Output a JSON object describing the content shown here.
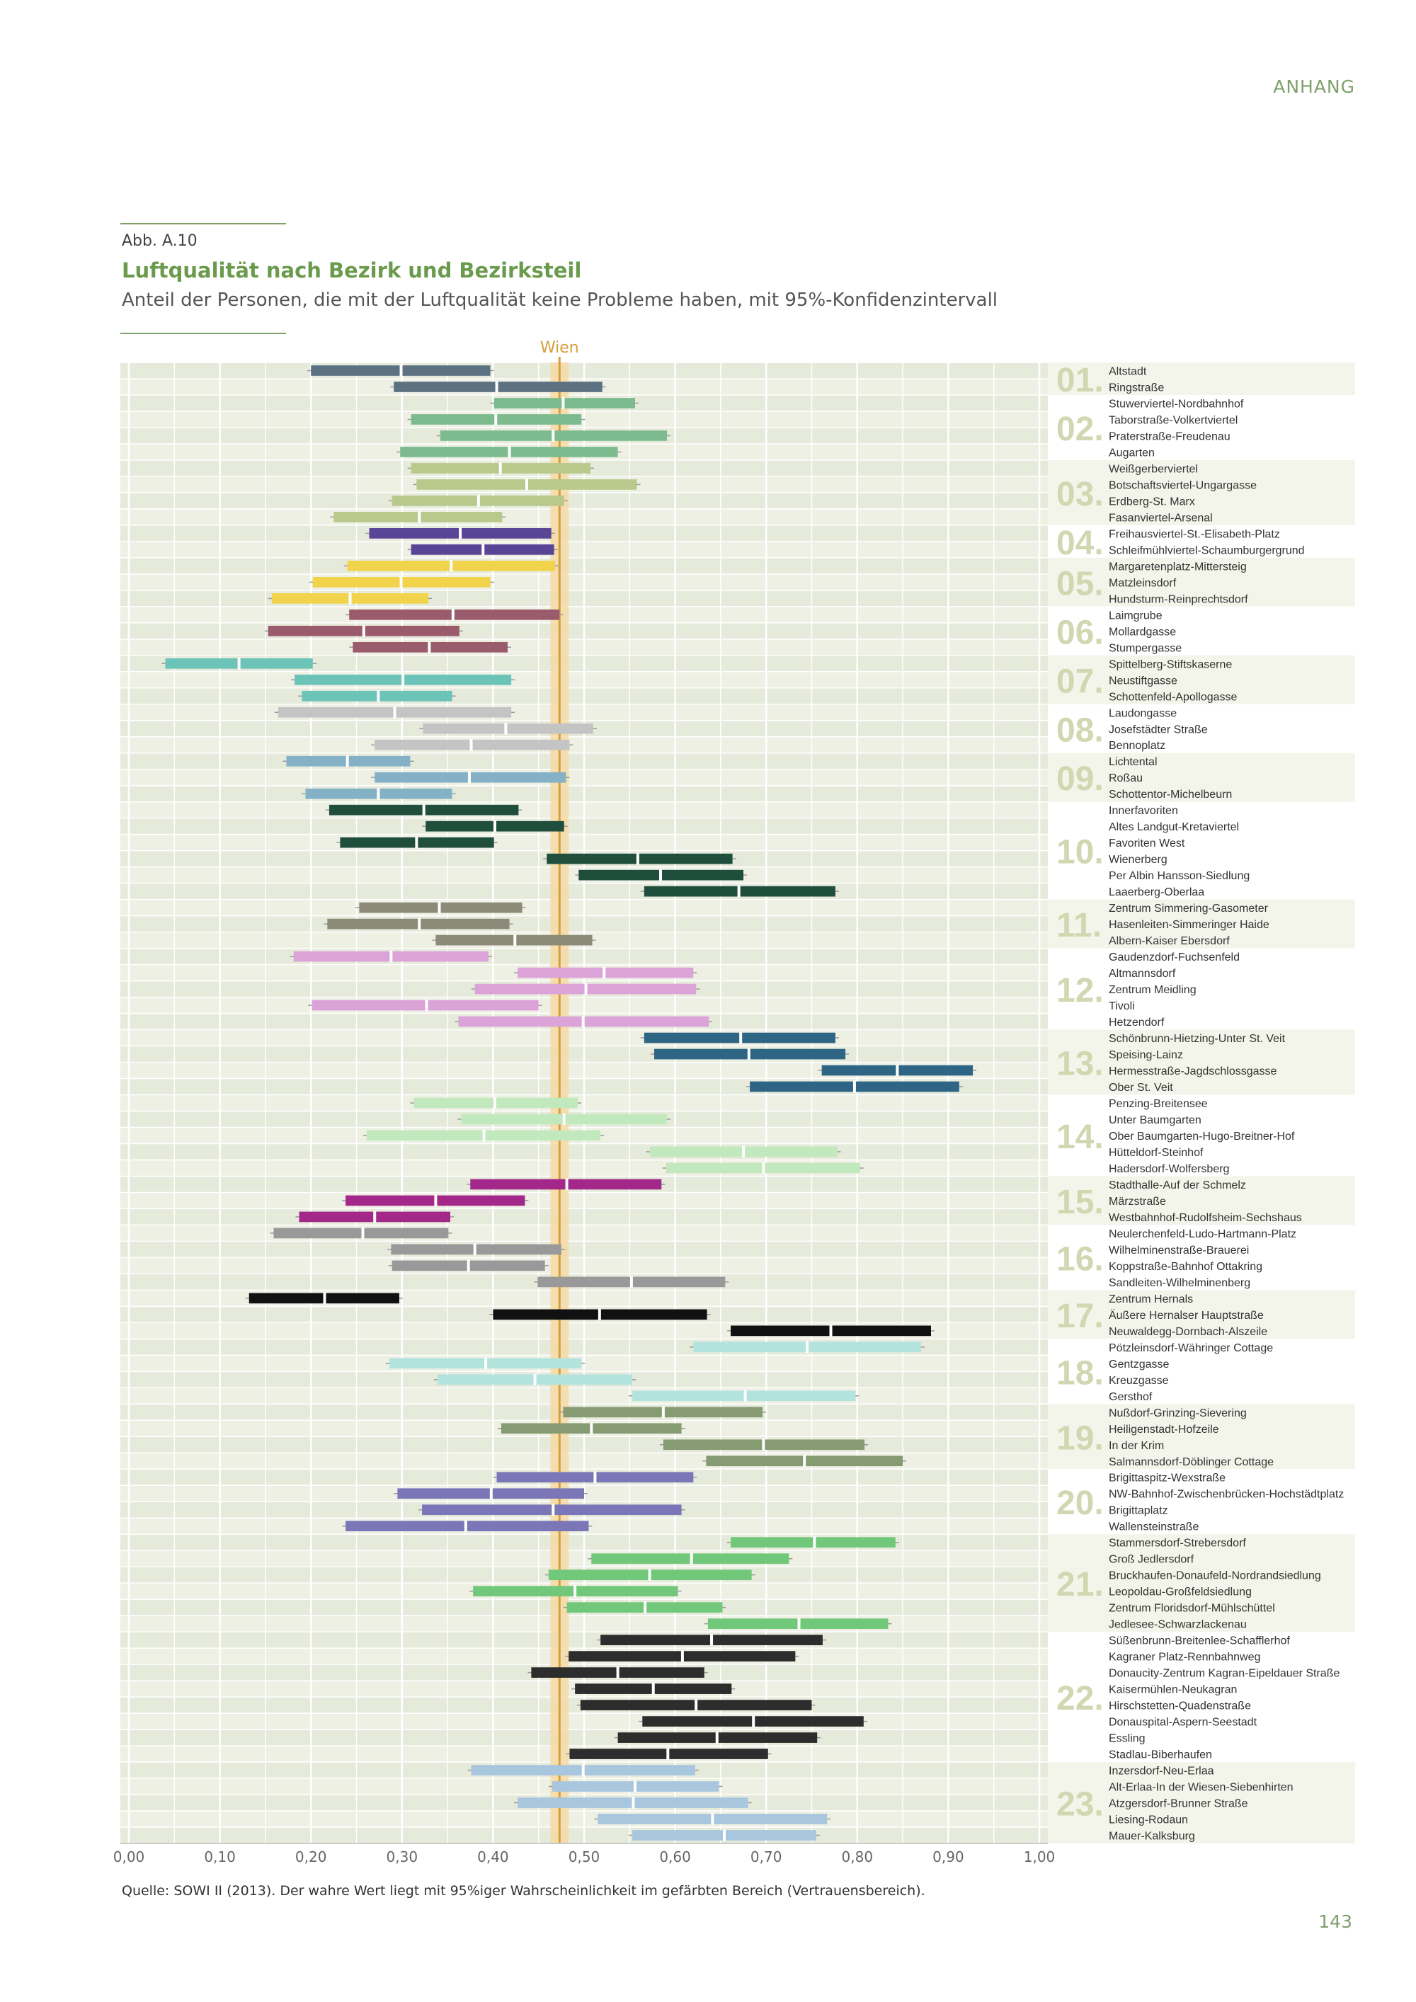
{
  "page": {
    "header_label": "ANHANG",
    "figure_number": "Abb. A.10",
    "title": "Luftqualität nach Bezirk und Bezirksteil",
    "subtitle": "Anteil der Personen, die mit der Luftqualität keine Probleme haben, mit 95%-Konfidenzintervall",
    "source": "Quelle: SOWI II (2013). Der wahre Wert liegt mit 95%iger Wahrscheinlichkeit im gefärbten Bereich (Vertrauensbereich).",
    "page_number": "143"
  },
  "chart_data": {
    "type": "bar",
    "orientation": "horizontal",
    "encoding": "confidence-interval bars with point-estimate marker",
    "xlim": [
      0,
      1
    ],
    "xticks": [
      "0,00",
      "0,10",
      "0,20",
      "0,30",
      "0,40",
      "0,50",
      "0,60",
      "0,70",
      "0,80",
      "0,90",
      "1,00"
    ],
    "reference_line": {
      "label": "Wien",
      "value": 0.473,
      "band": [
        0.463,
        0.483
      ],
      "color": "#d4a03a"
    },
    "grid": true,
    "districts": [
      {
        "number": "01.",
        "color": "#5c7283",
        "items": [
          {
            "name": "Altstadt",
            "lower": 0.2,
            "estimate": 0.299,
            "upper": 0.397
          },
          {
            "name": "Ringstraße",
            "lower": 0.291,
            "estimate": 0.404,
            "upper": 0.52
          }
        ]
      },
      {
        "number": "02.",
        "color": "#7dbb8f",
        "items": [
          {
            "name": "Stuwerviertel-Nordbahnhof",
            "lower": 0.401,
            "estimate": 0.477,
            "upper": 0.556
          },
          {
            "name": "Taborstraße-Volkertviertel",
            "lower": 0.31,
            "estimate": 0.403,
            "upper": 0.497
          },
          {
            "name": "Praterstraße-Freudenau",
            "lower": 0.342,
            "estimate": 0.466,
            "upper": 0.591
          },
          {
            "name": "Augarten",
            "lower": 0.298,
            "estimate": 0.418,
            "upper": 0.537
          }
        ]
      },
      {
        "number": "03.",
        "color": "#b9c98c",
        "items": [
          {
            "name": "Weißgerberviertel",
            "lower": 0.31,
            "estimate": 0.408,
            "upper": 0.507
          },
          {
            "name": "Botschaftsviertel-Ungargasse",
            "lower": 0.316,
            "estimate": 0.437,
            "upper": 0.558
          },
          {
            "name": "Erdberg-St. Marx",
            "lower": 0.289,
            "estimate": 0.384,
            "upper": 0.478
          },
          {
            "name": "Fasanviertel-Arsenal",
            "lower": 0.225,
            "estimate": 0.319,
            "upper": 0.41
          }
        ]
      },
      {
        "number": "04.",
        "color": "#5a4496",
        "items": [
          {
            "name": "Freihausviertel-St.-Elisabeth-Platz",
            "lower": 0.264,
            "estimate": 0.364,
            "upper": 0.464
          },
          {
            "name": "Schleifmühlviertel-Schaumburgergrund",
            "lower": 0.31,
            "estimate": 0.389,
            "upper": 0.467
          }
        ]
      },
      {
        "number": "05.",
        "color": "#f2d44c",
        "items": [
          {
            "name": "Margaretenplatz-Mittersteig",
            "lower": 0.24,
            "estimate": 0.354,
            "upper": 0.468
          },
          {
            "name": "Matzleinsdorf",
            "lower": 0.202,
            "estimate": 0.299,
            "upper": 0.397
          },
          {
            "name": "Hundsturm-Reinprechtsdorf",
            "lower": 0.157,
            "estimate": 0.243,
            "upper": 0.329
          }
        ]
      },
      {
        "number": "06.",
        "color": "#9a5b6c",
        "items": [
          {
            "name": "Laimgrube",
            "lower": 0.242,
            "estimate": 0.356,
            "upper": 0.473
          },
          {
            "name": "Mollardgasse",
            "lower": 0.153,
            "estimate": 0.258,
            "upper": 0.363
          },
          {
            "name": "Stumpergasse",
            "lower": 0.246,
            "estimate": 0.33,
            "upper": 0.416
          }
        ]
      },
      {
        "number": "07.",
        "color": "#6cc3b8",
        "items": [
          {
            "name": "Spittelberg-Stiftskaserne",
            "lower": 0.04,
            "estimate": 0.121,
            "upper": 0.202
          },
          {
            "name": "Neustiftgasse",
            "lower": 0.182,
            "estimate": 0.301,
            "upper": 0.42
          },
          {
            "name": "Schottenfeld-Apollogasse",
            "lower": 0.19,
            "estimate": 0.274,
            "upper": 0.355
          }
        ]
      },
      {
        "number": "08.",
        "color": "#c4c4c4",
        "items": [
          {
            "name": "Laudongasse",
            "lower": 0.164,
            "estimate": 0.292,
            "upper": 0.42
          },
          {
            "name": "Josefstädter Straße",
            "lower": 0.323,
            "estimate": 0.414,
            "upper": 0.51
          },
          {
            "name": "Bennoplatz",
            "lower": 0.27,
            "estimate": 0.376,
            "upper": 0.484
          }
        ]
      },
      {
        "number": "09.",
        "color": "#85b1c7",
        "items": [
          {
            "name": "Lichtental",
            "lower": 0.173,
            "estimate": 0.24,
            "upper": 0.309
          },
          {
            "name": "Roßau",
            "lower": 0.27,
            "estimate": 0.374,
            "upper": 0.48
          },
          {
            "name": "Schottentor-Michelbeurn",
            "lower": 0.194,
            "estimate": 0.274,
            "upper": 0.355
          }
        ]
      },
      {
        "number": "10.",
        "color": "#1f4e3d",
        "items": [
          {
            "name": "Innerfavoriten",
            "lower": 0.22,
            "estimate": 0.324,
            "upper": 0.428
          },
          {
            "name": "Altes Landgut-Kretaviertel",
            "lower": 0.326,
            "estimate": 0.402,
            "upper": 0.478
          },
          {
            "name": "Favoriten West",
            "lower": 0.232,
            "estimate": 0.316,
            "upper": 0.401
          },
          {
            "name": "Wienerberg",
            "lower": 0.459,
            "estimate": 0.559,
            "upper": 0.663
          },
          {
            "name": "Per Albin Hansson-Siedlung",
            "lower": 0.494,
            "estimate": 0.584,
            "upper": 0.675
          },
          {
            "name": "Laaerberg-Oberlaa",
            "lower": 0.566,
            "estimate": 0.67,
            "upper": 0.776
          }
        ]
      },
      {
        "number": "11.",
        "color": "#8c8a78",
        "items": [
          {
            "name": "Zentrum Simmering-Gasometer",
            "lower": 0.253,
            "estimate": 0.341,
            "upper": 0.432
          },
          {
            "name": "Hasenleiten-Simmeringer Haide",
            "lower": 0.218,
            "estimate": 0.319,
            "upper": 0.418
          },
          {
            "name": "Albern-Kaiser Ebersdorf",
            "lower": 0.337,
            "estimate": 0.424,
            "upper": 0.509
          }
        ]
      },
      {
        "number": "12.",
        "color": "#dba3d8",
        "items": [
          {
            "name": "Gaudenzdorf-Fuchsenfeld",
            "lower": 0.181,
            "estimate": 0.288,
            "upper": 0.395
          },
          {
            "name": "Altmannsdorf",
            "lower": 0.427,
            "estimate": 0.522,
            "upper": 0.62
          },
          {
            "name": "Zentrum Meidling",
            "lower": 0.38,
            "estimate": 0.502,
            "upper": 0.623
          },
          {
            "name": "Tivoli",
            "lower": 0.201,
            "estimate": 0.327,
            "upper": 0.45
          },
          {
            "name": "Hetzendorf",
            "lower": 0.362,
            "estimate": 0.499,
            "upper": 0.637
          }
        ]
      },
      {
        "number": "13.",
        "color": "#2e6585",
        "items": [
          {
            "name": "Schönbrunn-Hietzing-Unter St. Veit",
            "lower": 0.566,
            "estimate": 0.672,
            "upper": 0.776
          },
          {
            "name": "Speising-Lainz",
            "lower": 0.577,
            "estimate": 0.681,
            "upper": 0.787
          },
          {
            "name": "Hermesstraße-Jagdschlossgasse",
            "lower": 0.761,
            "estimate": 0.844,
            "upper": 0.927
          },
          {
            "name": "Ober St. Veit",
            "lower": 0.682,
            "estimate": 0.797,
            "upper": 0.912
          }
        ]
      },
      {
        "number": "14.",
        "color": "#c2e8bd",
        "items": [
          {
            "name": "Penzing-Breitensee",
            "lower": 0.313,
            "estimate": 0.402,
            "upper": 0.493
          },
          {
            "name": "Unter Baumgarten",
            "lower": 0.365,
            "estimate": 0.478,
            "upper": 0.591
          },
          {
            "name": "Ober Baumgarten-Hugo-Breitner-Hof",
            "lower": 0.261,
            "estimate": 0.39,
            "upper": 0.518
          },
          {
            "name": "Hütteldorf-Steinhof",
            "lower": 0.572,
            "estimate": 0.675,
            "upper": 0.778
          },
          {
            "name": "Hadersdorf-Wolfersberg",
            "lower": 0.59,
            "estimate": 0.697,
            "upper": 0.803
          }
        ]
      },
      {
        "number": "15.",
        "color": "#a3288a",
        "items": [
          {
            "name": "Stadthalle-Auf der Schmelz",
            "lower": 0.375,
            "estimate": 0.481,
            "upper": 0.585
          },
          {
            "name": "Märzstraße",
            "lower": 0.238,
            "estimate": 0.337,
            "upper": 0.435
          },
          {
            "name": "Westbahnhof-Rudolfsheim-Sechshaus",
            "lower": 0.187,
            "estimate": 0.27,
            "upper": 0.353
          }
        ]
      },
      {
        "number": "16.",
        "color": "#999999",
        "items": [
          {
            "name": "Neulerchenfeld-Ludo-Hartmann-Platz",
            "lower": 0.159,
            "estimate": 0.257,
            "upper": 0.351
          },
          {
            "name": "Wilhelminenstraße-Brauerei",
            "lower": 0.288,
            "estimate": 0.38,
            "upper": 0.475
          },
          {
            "name": "Koppstraße-Bahnhof Ottakring",
            "lower": 0.289,
            "estimate": 0.373,
            "upper": 0.457
          },
          {
            "name": "Sandleiten-Wilhelminenberg",
            "lower": 0.449,
            "estimate": 0.552,
            "upper": 0.655
          }
        ]
      },
      {
        "number": "17.",
        "color": "#111111",
        "items": [
          {
            "name": "Zentrum Hernals",
            "lower": 0.132,
            "estimate": 0.215,
            "upper": 0.297
          },
          {
            "name": "Äußere Hernalser Hauptstraße",
            "lower": 0.4,
            "estimate": 0.517,
            "upper": 0.635
          },
          {
            "name": "Neuwaldegg-Dornbach-Alszeile",
            "lower": 0.661,
            "estimate": 0.771,
            "upper": 0.881
          }
        ]
      },
      {
        "number": "18.",
        "color": "#b3e3dd",
        "items": [
          {
            "name": "Pötzleinsdorf-Währinger Cottage",
            "lower": 0.62,
            "estimate": 0.745,
            "upper": 0.87
          },
          {
            "name": "Gentzgasse",
            "lower": 0.286,
            "estimate": 0.392,
            "upper": 0.497
          },
          {
            "name": "Kreuzgasse",
            "lower": 0.339,
            "estimate": 0.446,
            "upper": 0.553
          },
          {
            "name": "Gersthof",
            "lower": 0.553,
            "estimate": 0.677,
            "upper": 0.798
          }
        ]
      },
      {
        "number": "19.",
        "color": "#869b72",
        "items": [
          {
            "name": "Nußdorf-Grinzing-Sievering",
            "lower": 0.477,
            "estimate": 0.587,
            "upper": 0.696
          },
          {
            "name": "Heiligenstadt-Hofzeile",
            "lower": 0.409,
            "estimate": 0.508,
            "upper": 0.607
          },
          {
            "name": "In der Krim",
            "lower": 0.587,
            "estimate": 0.697,
            "upper": 0.808
          },
          {
            "name": "Salmannsdorf-Döblinger Cottage",
            "lower": 0.634,
            "estimate": 0.742,
            "upper": 0.85
          }
        ]
      },
      {
        "number": "20.",
        "color": "#7b76b8",
        "items": [
          {
            "name": "Brigittaspitz-Wexstraße",
            "lower": 0.404,
            "estimate": 0.512,
            "upper": 0.62
          },
          {
            "name": "NW-Bahnhof-Zwischenbrücken-Hochstädtplatz",
            "lower": 0.295,
            "estimate": 0.398,
            "upper": 0.5
          },
          {
            "name": "Brigittaplatz",
            "lower": 0.322,
            "estimate": 0.466,
            "upper": 0.607
          },
          {
            "name": "Wallensteinstraße",
            "lower": 0.238,
            "estimate": 0.37,
            "upper": 0.505
          }
        ]
      },
      {
        "number": "21.",
        "color": "#72c87a",
        "items": [
          {
            "name": "Stammersdorf-Strebersdorf",
            "lower": 0.661,
            "estimate": 0.753,
            "upper": 0.842
          },
          {
            "name": "Groß Jedlersdorf",
            "lower": 0.508,
            "estimate": 0.618,
            "upper": 0.725
          },
          {
            "name": "Bruckhaufen-Donaufeld-Nordrandsiedlung",
            "lower": 0.461,
            "estimate": 0.572,
            "upper": 0.684
          },
          {
            "name": "Leopoldau-Großfeldsiedlung",
            "lower": 0.378,
            "estimate": 0.49,
            "upper": 0.603
          },
          {
            "name": "Zentrum Floridsdorf-Mühlschüttel",
            "lower": 0.481,
            "estimate": 0.567,
            "upper": 0.652
          },
          {
            "name": "Jedlesee-Schwarzlackenau",
            "lower": 0.636,
            "estimate": 0.736,
            "upper": 0.834
          }
        ]
      },
      {
        "number": "22.",
        "color": "#2d2d2d",
        "items": [
          {
            "name": "Süßenbrunn-Breitenlee-Schafflerhof",
            "lower": 0.518,
            "estimate": 0.64,
            "upper": 0.762
          },
          {
            "name": "Kagraner Platz-Rennbahnweg",
            "lower": 0.483,
            "estimate": 0.608,
            "upper": 0.732
          },
          {
            "name": "Donaucity-Zentrum Kagran-Eipeldauer Straße",
            "lower": 0.442,
            "estimate": 0.537,
            "upper": 0.632
          },
          {
            "name": "Kaisermühlen-Neukagran",
            "lower": 0.49,
            "estimate": 0.576,
            "upper": 0.662
          },
          {
            "name": "Hirschstetten-Quadenstraße",
            "lower": 0.496,
            "estimate": 0.623,
            "upper": 0.75
          },
          {
            "name": "Donauspital-Aspern-Seestadt",
            "lower": 0.564,
            "estimate": 0.686,
            "upper": 0.807
          },
          {
            "name": "Essling",
            "lower": 0.537,
            "estimate": 0.646,
            "upper": 0.756
          },
          {
            "name": "Stadlau-Biberhaufen",
            "lower": 0.484,
            "estimate": 0.592,
            "upper": 0.702
          }
        ]
      },
      {
        "number": "23.",
        "color": "#a8c6de",
        "items": [
          {
            "name": "Inzersdorf-Neu-Erlaa",
            "lower": 0.376,
            "estimate": 0.499,
            "upper": 0.622
          },
          {
            "name": "Alt-Erlaa-In der Wiesen-Siebenhirten",
            "lower": 0.465,
            "estimate": 0.556,
            "upper": 0.648
          },
          {
            "name": "Atzgersdorf-Brunner Straße",
            "lower": 0.427,
            "estimate": 0.554,
            "upper": 0.68
          },
          {
            "name": "Liesing-Rodaun",
            "lower": 0.515,
            "estimate": 0.641,
            "upper": 0.767
          },
          {
            "name": "Mauer-Kalksburg",
            "lower": 0.553,
            "estimate": 0.654,
            "upper": 0.755
          }
        ]
      }
    ]
  }
}
